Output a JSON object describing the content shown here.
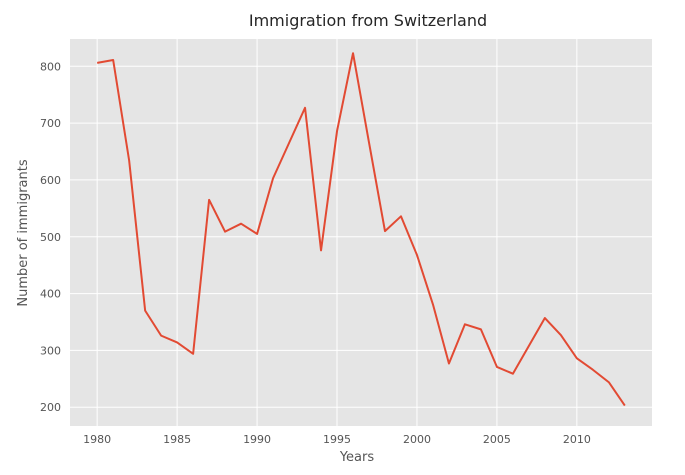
{
  "chart_data": {
    "type": "line",
    "title": "Immigration from Switzerland",
    "xlabel": "Years",
    "ylabel": "Number of immigrants",
    "xlim": [
      1978.3,
      2014.7
    ],
    "ylim": [
      167,
      848
    ],
    "xticks": [
      1980,
      1985,
      1990,
      1995,
      2000,
      2005,
      2010
    ],
    "yticks": [
      200,
      300,
      400,
      500,
      600,
      700,
      800
    ],
    "grid": true,
    "legend": "none",
    "series": [
      {
        "color": "#e24a33",
        "x": [
          1980,
          1981,
          1982,
          1983,
          1984,
          1985,
          1986,
          1987,
          1988,
          1989,
          1990,
          1991,
          1992,
          1993,
          1994,
          1995,
          1996,
          1997,
          1998,
          1999,
          2000,
          2001,
          2002,
          2003,
          2004,
          2005,
          2006,
          2007,
          2008,
          2009,
          2010,
          2011,
          2012,
          2013
        ],
        "values": [
          806,
          811,
          634,
          370,
          326,
          314,
          294,
          565,
          509,
          523,
          505,
          603,
          665,
          727,
          476,
          686,
          823,
          666,
          510,
          536,
          468,
          381,
          277,
          346,
          337,
          271,
          259,
          308,
          357,
          327,
          286,
          266,
          244,
          203
        ]
      }
    ]
  },
  "colors": {
    "plot_background": "#e5e5e5",
    "grid": "#ffffff",
    "line": "#e24a33",
    "text": "#555555"
  }
}
